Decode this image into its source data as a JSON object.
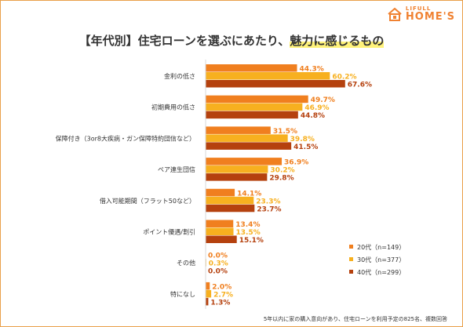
{
  "header": {
    "title_main": "【年代別】住宅ローンを選ぶにあたり、",
    "title_highlight": "魅力に感じるもの",
    "logo_top": "LIFULL",
    "logo_bottom": "HOME'S"
  },
  "footnote": "5年以内に家の購入意向があり、住宅ローンを利用予定の825名、複数回答",
  "chart_data": {
    "type": "bar",
    "orientation": "horizontal",
    "unit": "%",
    "categories": [
      "金利の低さ",
      "初期費用の低さ",
      "保障付き（3or8大疾病・ガン保障特約団信など）",
      "ペア連生団信",
      "借入可能期間（フラット50など）",
      "ポイント優遇/割引",
      "その他",
      "特になし"
    ],
    "series": [
      {
        "name": "20代（n=149）",
        "color": "#f07f1f",
        "values": [
          44.3,
          49.7,
          31.5,
          36.9,
          14.1,
          13.4,
          0.0,
          2.0
        ]
      },
      {
        "name": "30代（n=377）",
        "color": "#f7b01f",
        "values": [
          60.2,
          46.9,
          39.8,
          30.2,
          23.3,
          13.5,
          0.3,
          2.7
        ]
      },
      {
        "name": "40代（n=299）",
        "color": "#b5410e",
        "values": [
          67.6,
          44.8,
          41.5,
          29.8,
          23.7,
          15.1,
          0.0,
          1.3
        ]
      }
    ],
    "legend_position": "bottom-right",
    "grid": false
  }
}
